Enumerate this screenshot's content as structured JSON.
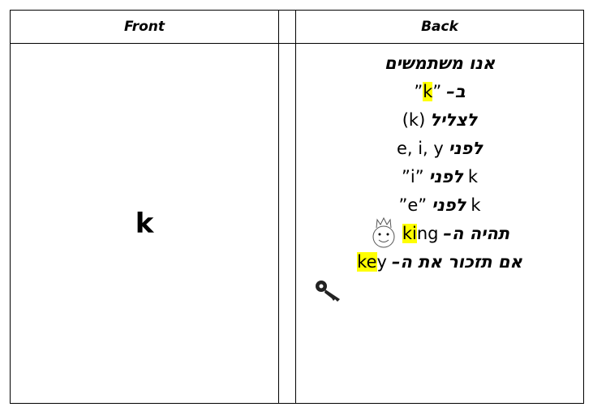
{
  "header": {
    "front": "Front",
    "back": "Back"
  },
  "front": {
    "text": "k"
  },
  "back": {
    "lines": [
      [
        {
          "text": "אנו משתמשים",
          "highlight": false
        }
      ],
      [
        {
          "text": "”",
          "highlight": false
        },
        {
          "text": "k",
          "highlight": true
        },
        {
          "text": "”",
          "highlight": false
        },
        {
          "text": "ב–",
          "highlight": false
        }
      ],
      [
        {
          "text": "(k)",
          "highlight": false
        },
        {
          "text": "לצליל",
          "highlight": false
        }
      ],
      [
        {
          "text": "e, i, y",
          "highlight": false
        },
        {
          "text": "לפני",
          "highlight": false
        }
      ],
      [
        {
          "text": "”i”",
          "highlight": false
        },
        {
          "text": "לפני",
          "highlight": false
        },
        {
          "text": "k",
          "highlight": false
        }
      ],
      [
        {
          "text": "”e”",
          "highlight": false
        },
        {
          "text": "לפני",
          "highlight": false
        },
        {
          "text": "k",
          "highlight": false
        }
      ],
      [
        {
          "text": "ki",
          "highlight": true
        },
        {
          "text": "ng",
          "highlight": false
        },
        {
          "text": "תהיה ה–",
          "highlight": false
        }
      ],
      [
        {
          "text": "ke",
          "highlight": true
        },
        {
          "text": "y",
          "highlight": false
        },
        {
          "text": "אם תזכור את ה–",
          "highlight": false
        }
      ]
    ]
  }
}
